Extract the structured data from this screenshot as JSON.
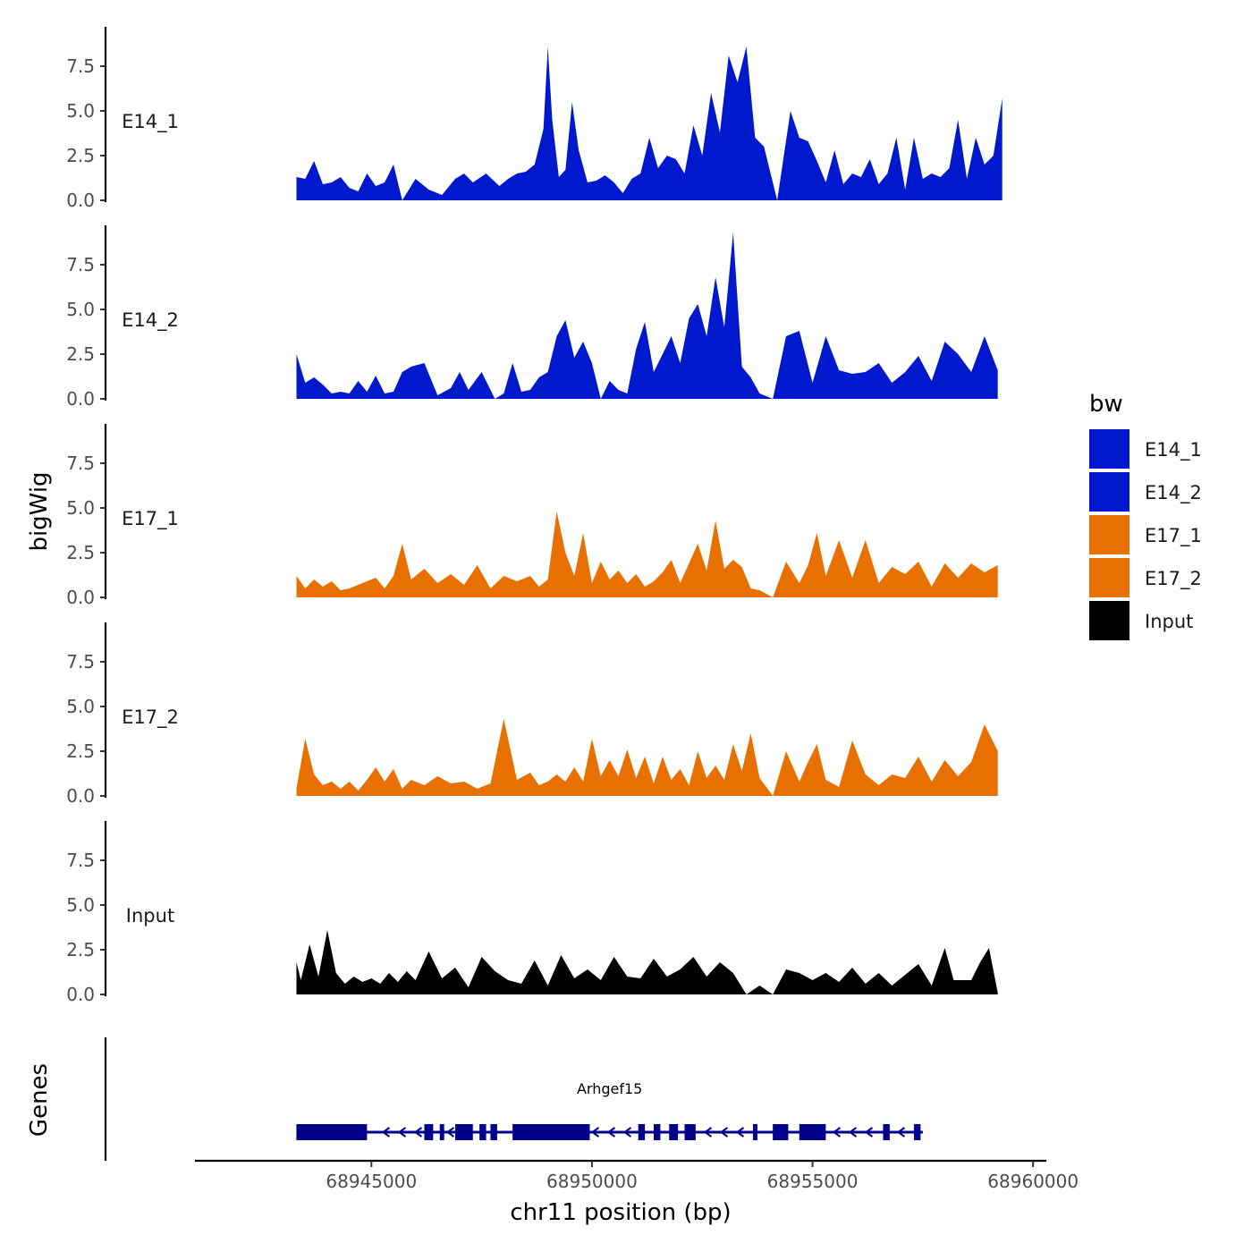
{
  "chart_data": {
    "type": "area",
    "chromosome": "chr11",
    "xlabel": "chr11 position (bp)",
    "ylabel": "bigWig",
    "gene_track_label": "Genes",
    "xlim": [
      68941000,
      68960300
    ],
    "xticks": [
      68945000,
      68950000,
      68955000,
      68960000
    ],
    "xtick_labels": [
      "68945000",
      "68950000",
      "68955000",
      "68960000"
    ],
    "ylim": [
      0,
      9.7
    ],
    "yticks": [
      0,
      2.5,
      5,
      7.5
    ],
    "ytick_labels": [
      "0.0",
      "2.5",
      "5.0",
      "7.5"
    ],
    "legend": {
      "title": "bw",
      "position": "right",
      "entries": [
        {
          "label": "E14_1",
          "color": "#0019CC"
        },
        {
          "label": "E14_2",
          "color": "#0019CC"
        },
        {
          "label": "E17_1",
          "color": "#E87000"
        },
        {
          "label": "E17_2",
          "color": "#E87000"
        },
        {
          "label": "Input",
          "color": "#000000"
        }
      ]
    },
    "series": [
      {
        "name": "E14_1",
        "color": "#0019CC",
        "x": [
          68943300,
          68943500,
          68943700,
          68943900,
          68944100,
          68944300,
          68944500,
          68944700,
          68944900,
          68945100,
          68945300,
          68945500,
          68945700,
          68946000,
          68946300,
          68946600,
          68946900,
          68947100,
          68947300,
          68947600,
          68947900,
          68948100,
          68948300,
          68948500,
          68948700,
          68948900,
          68949000,
          68949100,
          68949250,
          68949400,
          68949550,
          68949700,
          68949900,
          68950100,
          68950300,
          68950500,
          68950700,
          68950900,
          68951100,
          68951300,
          68951500,
          68951700,
          68951900,
          68952100,
          68952300,
          68952500,
          68952700,
          68952900,
          68953100,
          68953300,
          68953500,
          68953700,
          68953900,
          68954200,
          68954500,
          68954700,
          68954900,
          68955100,
          68955300,
          68955500,
          68955700,
          68955900,
          68956100,
          68956300,
          68956500,
          68956700,
          68956900,
          68957100,
          68957300,
          68957500,
          68957700,
          68957900,
          68958100,
          68958300,
          68958500,
          68958700,
          68958900,
          68959100,
          68959300
        ],
        "y": [
          1.3,
          1.2,
          2.2,
          0.9,
          1.0,
          1.3,
          0.7,
          0.5,
          1.5,
          0.8,
          1.0,
          2.0,
          0.0,
          1.2,
          0.6,
          0.3,
          1.2,
          1.5,
          1.0,
          1.5,
          0.8,
          1.2,
          1.5,
          1.6,
          2.0,
          4.0,
          8.6,
          4.5,
          1.3,
          1.7,
          5.5,
          2.8,
          1.0,
          1.1,
          1.4,
          1.0,
          0.4,
          1.2,
          1.5,
          3.5,
          1.8,
          2.5,
          2.3,
          1.5,
          4.2,
          2.5,
          6.0,
          3.8,
          8.1,
          6.6,
          8.6,
          3.5,
          3.0,
          0.0,
          5.0,
          3.5,
          3.3,
          2.2,
          1.0,
          2.8,
          0.9,
          1.5,
          1.3,
          2.3,
          0.9,
          1.5,
          3.5,
          0.6,
          3.5,
          1.2,
          1.5,
          1.3,
          1.8,
          4.5,
          1.2,
          3.5,
          2.0,
          2.5,
          5.7
        ]
      },
      {
        "name": "E14_2",
        "color": "#0019CC",
        "x": [
          68943300,
          68943500,
          68943700,
          68943900,
          68944100,
          68944300,
          68944500,
          68944700,
          68944900,
          68945100,
          68945300,
          68945500,
          68945700,
          68945900,
          68946200,
          68946500,
          68946800,
          68947000,
          68947200,
          68947500,
          68947800,
          68948000,
          68948200,
          68948400,
          68948600,
          68948800,
          68949000,
          68949200,
          68949400,
          68949600,
          68949800,
          68950000,
          68950200,
          68950400,
          68950600,
          68950800,
          68951000,
          68951200,
          68951400,
          68951600,
          68951800,
          68952000,
          68952200,
          68952400,
          68952600,
          68952800,
          68953000,
          68953200,
          68953400,
          68953600,
          68953800,
          68954100,
          68954400,
          68954700,
          68955000,
          68955300,
          68955600,
          68955900,
          68956200,
          68956500,
          68956800,
          68957100,
          68957400,
          68957700,
          68958000,
          68958300,
          68958600,
          68958900,
          68959200
        ],
        "y": [
          2.5,
          0.9,
          1.2,
          0.8,
          0.3,
          0.4,
          0.3,
          1.0,
          0.4,
          1.3,
          0.3,
          0.4,
          1.5,
          1.8,
          2.0,
          0.2,
          0.6,
          1.5,
          0.5,
          1.5,
          0.0,
          0.3,
          2.0,
          0.4,
          0.5,
          1.2,
          1.5,
          3.5,
          4.4,
          2.3,
          3.2,
          2.0,
          0.0,
          1.0,
          0.5,
          0.3,
          2.8,
          4.3,
          1.5,
          2.5,
          3.5,
          2.0,
          4.5,
          5.3,
          3.5,
          6.8,
          4.0,
          9.3,
          1.8,
          1.2,
          0.3,
          0.0,
          3.5,
          3.8,
          0.9,
          3.5,
          1.6,
          1.4,
          1.5,
          2.0,
          0.9,
          1.5,
          2.4,
          1.0,
          3.2,
          2.5,
          1.5,
          3.5,
          1.6
        ]
      },
      {
        "name": "E17_1",
        "color": "#E87000",
        "x": [
          68943300,
          68943500,
          68943700,
          68943900,
          68944100,
          68944300,
          68944500,
          68944700,
          68944900,
          68945100,
          68945300,
          68945500,
          68945700,
          68945900,
          68946200,
          68946500,
          68946800,
          68947100,
          68947400,
          68947700,
          68948000,
          68948300,
          68948600,
          68948800,
          68949000,
          68949200,
          68949400,
          68949600,
          68949800,
          68950000,
          68950200,
          68950400,
          68950600,
          68950800,
          68951000,
          68951200,
          68951400,
          68951600,
          68951800,
          68952000,
          68952200,
          68952400,
          68952600,
          68952800,
          68953000,
          68953200,
          68953400,
          68953600,
          68953800,
          68954100,
          68954400,
          68954700,
          68954900,
          68955100,
          68955300,
          68955600,
          68955900,
          68956200,
          68956500,
          68956800,
          68957100,
          68957400,
          68957700,
          68958000,
          68958300,
          68958600,
          68958900,
          68959200
        ],
        "y": [
          1.2,
          0.5,
          1.0,
          0.6,
          0.9,
          0.4,
          0.5,
          0.7,
          0.9,
          1.1,
          0.5,
          1.2,
          3.0,
          1.0,
          1.6,
          0.8,
          1.3,
          0.7,
          1.8,
          0.5,
          1.2,
          0.9,
          1.2,
          0.6,
          1.0,
          4.8,
          2.5,
          1.2,
          3.6,
          0.8,
          2.0,
          1.0,
          1.5,
          0.8,
          1.3,
          0.6,
          0.9,
          1.4,
          2.1,
          0.8,
          1.9,
          3.0,
          1.5,
          4.3,
          1.6,
          2.1,
          1.7,
          0.5,
          0.4,
          0.0,
          2.0,
          0.8,
          1.8,
          3.6,
          1.2,
          3.2,
          1.1,
          3.2,
          0.8,
          1.7,
          1.3,
          2.0,
          0.6,
          1.9,
          1.1,
          1.9,
          1.4,
          1.8
        ]
      },
      {
        "name": "E17_2",
        "color": "#E87000",
        "x": [
          68943300,
          68943500,
          68943700,
          68943900,
          68944100,
          68944300,
          68944500,
          68944700,
          68944900,
          68945100,
          68945300,
          68945500,
          68945700,
          68945900,
          68946200,
          68946500,
          68946800,
          68947100,
          68947400,
          68947700,
          68948000,
          68948300,
          68948600,
          68948800,
          68949000,
          68949200,
          68949400,
          68949600,
          68949800,
          68950000,
          68950200,
          68950400,
          68950600,
          68950800,
          68951000,
          68951200,
          68951400,
          68951600,
          68951800,
          68952000,
          68952200,
          68952400,
          68952600,
          68952800,
          68953000,
          68953200,
          68953400,
          68953600,
          68953800,
          68954100,
          68954400,
          68954700,
          68954900,
          68955100,
          68955300,
          68955600,
          68955900,
          68956200,
          68956500,
          68956800,
          68957100,
          68957400,
          68957700,
          68958000,
          68958300,
          68958600,
          68958900,
          68959200
        ],
        "y": [
          0.4,
          3.2,
          1.2,
          0.6,
          0.8,
          0.4,
          0.8,
          0.3,
          0.9,
          1.6,
          0.8,
          1.5,
          0.4,
          0.9,
          0.6,
          1.1,
          0.7,
          0.8,
          0.4,
          0.7,
          4.3,
          0.9,
          1.3,
          0.6,
          0.8,
          1.2,
          0.8,
          1.6,
          0.8,
          3.2,
          1.1,
          2.0,
          1.1,
          2.6,
          1.0,
          2.2,
          0.7,
          2.2,
          0.9,
          1.5,
          0.6,
          2.5,
          1.0,
          1.7,
          0.9,
          2.9,
          1.4,
          3.5,
          1.0,
          0.0,
          2.5,
          0.8,
          1.9,
          2.9,
          0.9,
          0.5,
          3.1,
          1.2,
          0.6,
          1.2,
          1.0,
          2.2,
          0.8,
          2.0,
          1.1,
          1.9,
          4.0,
          2.5
        ]
      },
      {
        "name": "Input",
        "color": "#000000",
        "x": [
          68943300,
          68943400,
          68943600,
          68943800,
          68944000,
          68944200,
          68944400,
          68944600,
          68944800,
          68945000,
          68945200,
          68945400,
          68945600,
          68945800,
          68946000,
          68946300,
          68946600,
          68946900,
          68947200,
          68947500,
          68947800,
          68948100,
          68948400,
          68948700,
          68949000,
          68949300,
          68949600,
          68949900,
          68950200,
          68950500,
          68950800,
          68951100,
          68951400,
          68951700,
          68952000,
          68952300,
          68952600,
          68952900,
          68953200,
          68953500,
          68953800,
          68954100,
          68954400,
          68954700,
          68955000,
          68955300,
          68955600,
          68955900,
          68956200,
          68956500,
          68956800,
          68957100,
          68957400,
          68957700,
          68958000,
          68958200,
          68958400,
          68958600,
          68958800,
          68959000,
          68959200
        ],
        "y": [
          1.8,
          0.8,
          2.8,
          1.0,
          3.6,
          1.2,
          0.6,
          1.0,
          0.7,
          0.9,
          0.6,
          1.2,
          0.7,
          1.3,
          0.8,
          2.4,
          0.9,
          1.5,
          0.4,
          2.1,
          1.3,
          0.8,
          0.6,
          1.9,
          0.5,
          2.2,
          0.9,
          1.4,
          0.8,
          2.1,
          1.0,
          0.9,
          2.0,
          1.0,
          1.4,
          2.1,
          1.0,
          1.8,
          1.2,
          0.0,
          0.5,
          0.0,
          1.4,
          1.2,
          0.8,
          1.2,
          0.7,
          1.5,
          0.6,
          1.2,
          0.5,
          1.1,
          1.7,
          0.5,
          2.6,
          0.8,
          0.8,
          0.8,
          1.8,
          2.6,
          0.1
        ]
      }
    ],
    "genes": [
      {
        "name": "Arhgef15",
        "strand": "-",
        "start": 68943300,
        "end": 68957500,
        "exons": [
          [
            68943300,
            68944900
          ],
          [
            68946200,
            68946400
          ],
          [
            68946550,
            68946650
          ],
          [
            68946900,
            68947300
          ],
          [
            68947450,
            68947600
          ],
          [
            68947700,
            68947850
          ],
          [
            68948200,
            68949950
          ],
          [
            68951050,
            68951200
          ],
          [
            68951400,
            68951550
          ],
          [
            68951750,
            68951950
          ],
          [
            68952100,
            68952350
          ],
          [
            68953650,
            68953750
          ],
          [
            68954100,
            68954450
          ],
          [
            68954700,
            68955300
          ],
          [
            68956600,
            68956750
          ],
          [
            68957300,
            68957450
          ]
        ]
      }
    ]
  }
}
